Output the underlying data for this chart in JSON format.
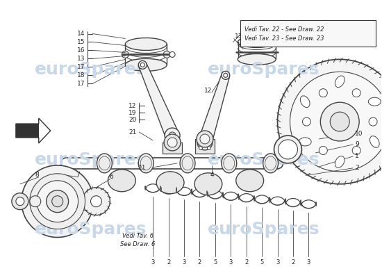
{
  "bg_color": "#ffffff",
  "watermark_color": "#c8d8e8",
  "fig_width": 5.5,
  "fig_height": 4.0,
  "dpi": 100,
  "line_color": "#444444",
  "label_fontsize": 6.5,
  "annotation_fontsize": 6.0,
  "annotations": {
    "vedi22": "Vedi Tav. 22 - See Draw. 22",
    "vedi23": "Vedi Tav. 23 - See Draw. 23",
    "vedi6_it": "Vedi Tav. 6",
    "vedi6_en": "See Draw. 6"
  }
}
